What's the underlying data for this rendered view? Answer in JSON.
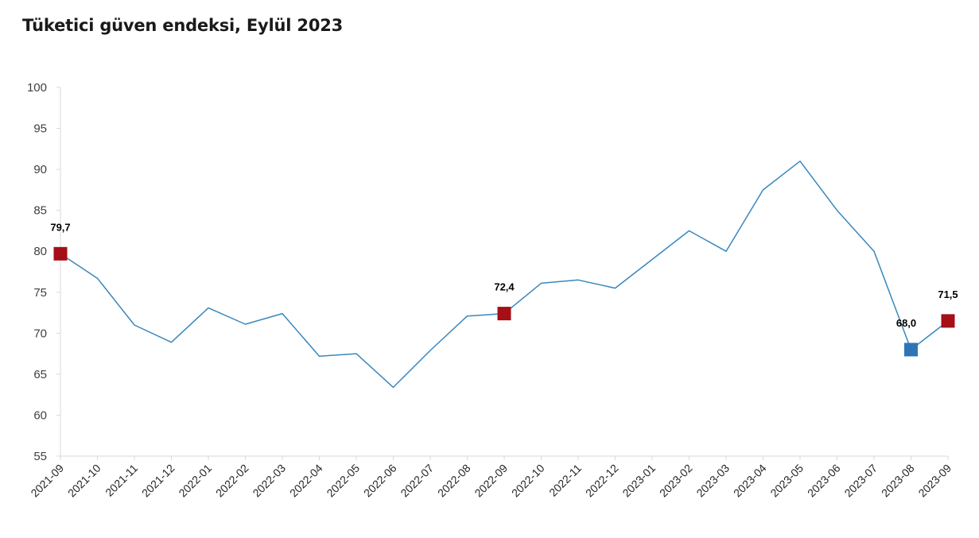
{
  "title": "Tüketici güven endeksi, Eylül 2023",
  "colors": {
    "line": "#3a87bd",
    "highlight": "#a50f15",
    "low": "#2e75b6",
    "axis": "#d9d9d9"
  },
  "chart_data": {
    "type": "line",
    "title": "Tüketici güven endeksi, Eylül 2023",
    "xlabel": "",
    "ylabel": "",
    "ylim": [
      55,
      100
    ],
    "yticks": [
      55,
      60,
      65,
      70,
      75,
      80,
      85,
      90,
      95,
      100
    ],
    "grid": false,
    "categories": [
      "2021-09",
      "2021-10",
      "2021-11",
      "2021-12",
      "2022-01",
      "2022-02",
      "2022-03",
      "2022-04",
      "2022-05",
      "2022-06",
      "2022-07",
      "2022-08",
      "2022-09",
      "2022-10",
      "2022-11",
      "2022-12",
      "2023-01",
      "2023-02",
      "2023-03",
      "2023-04",
      "2023-05",
      "2023-06",
      "2023-07",
      "2023-08",
      "2023-09"
    ],
    "values": [
      79.7,
      76.7,
      71.0,
      68.9,
      73.1,
      71.1,
      72.4,
      67.2,
      67.5,
      63.4,
      67.9,
      72.1,
      72.4,
      76.1,
      76.5,
      75.5,
      79.0,
      82.5,
      80.0,
      87.5,
      91.0,
      85.0,
      80.0,
      68.0,
      71.5
    ],
    "markers": [
      {
        "index": 0,
        "label": "79,7",
        "color": "highlight"
      },
      {
        "index": 12,
        "label": "72,4",
        "color": "highlight"
      },
      {
        "index": 23,
        "label": "68,0",
        "color": "low"
      },
      {
        "index": 24,
        "label": "71,5",
        "color": "highlight"
      }
    ]
  }
}
